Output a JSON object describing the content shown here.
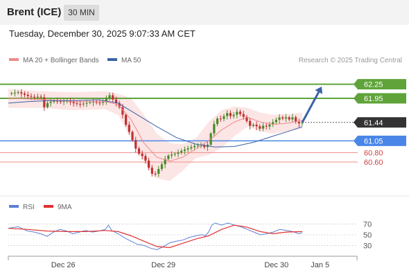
{
  "header": {
    "title": "Brent (ICE)",
    "timeframe": "30 MIN"
  },
  "timestamp": "Tuesday, December 30, 2025 9:07:33 AM CET",
  "colors": {
    "bollinger": "#f08a8a",
    "ma50": "#3a62a8",
    "resistance": "#5fa33a",
    "pivot": "#4a86e8",
    "support": "#f08a8a",
    "current": "#333333",
    "rsi": "#5b7fd6",
    "rsi_ma": "#e03030",
    "candle_up": "#4a8a2a",
    "candle_down": "#c03030",
    "arrow": "#3a62a8"
  },
  "chart_data": [
    {
      "type": "candlestick",
      "legend": [
        {
          "name": "MA 20 + Bollinger Bands",
          "color": "#f08a8a"
        },
        {
          "name": "MA 50",
          "color": "#3a62a8"
        }
      ],
      "credit": "Research © 2025 Trading Central",
      "ylim": [
        60.1,
        62.45
      ],
      "xlim": [
        0,
        100
      ],
      "x_ticks": [
        {
          "label": "Dec 26",
          "x": 17
        },
        {
          "label": "Dec 29",
          "x": 48
        },
        {
          "label": "Dec 30",
          "x": 83
        },
        {
          "label": "Jan 5",
          "x": 96.5
        }
      ],
      "levels": [
        {
          "value": 62.25,
          "label": "62.25",
          "kind": "resistance"
        },
        {
          "value": 61.95,
          "label": "61.95",
          "kind": "resistance"
        },
        {
          "value": 61.44,
          "label": "61.44",
          "kind": "current"
        },
        {
          "value": 61.05,
          "label": "61.05",
          "kind": "pivot"
        },
        {
          "value": 60.8,
          "label": "60.80",
          "kind": "support"
        },
        {
          "value": 60.6,
          "label": "60.60",
          "kind": "support"
        }
      ],
      "forecast_arrow": {
        "from": [
          91,
          61.44
        ],
        "to": [
          97,
          62.2
        ]
      },
      "price_path": [
        [
          0,
          62.05
        ],
        [
          3,
          62.08
        ],
        [
          6,
          62.0
        ],
        [
          8,
          61.97
        ],
        [
          10,
          62.0
        ],
        [
          11,
          61.75
        ],
        [
          12,
          61.85
        ],
        [
          14,
          61.9
        ],
        [
          16,
          61.88
        ],
        [
          18,
          61.9
        ],
        [
          20,
          61.85
        ],
        [
          22,
          61.82
        ],
        [
          24,
          61.85
        ],
        [
          26,
          61.88
        ],
        [
          28,
          61.85
        ],
        [
          30,
          61.9
        ],
        [
          31,
          62.05
        ],
        [
          32,
          61.95
        ],
        [
          33,
          61.88
        ],
        [
          34,
          61.8
        ],
        [
          35,
          61.7
        ],
        [
          36,
          61.45
        ],
        [
          37,
          61.3
        ],
        [
          38,
          61.15
        ],
        [
          39,
          60.95
        ],
        [
          40,
          60.8
        ],
        [
          41,
          60.75
        ],
        [
          42,
          60.7
        ],
        [
          43,
          60.55
        ],
        [
          44,
          60.4
        ],
        [
          45,
          60.3
        ],
        [
          46,
          60.4
        ],
        [
          47,
          60.5
        ],
        [
          48,
          60.6
        ],
        [
          49,
          60.72
        ],
        [
          50,
          60.75
        ],
        [
          52,
          60.78
        ],
        [
          54,
          60.85
        ],
        [
          56,
          60.9
        ],
        [
          58,
          60.95
        ],
        [
          60,
          60.95
        ],
        [
          61,
          60.9
        ],
        [
          62,
          61.0
        ],
        [
          63,
          61.3
        ],
        [
          64,
          61.45
        ],
        [
          65,
          61.55
        ],
        [
          66,
          61.5
        ],
        [
          67,
          61.6
        ],
        [
          68,
          61.65
        ],
        [
          69,
          61.55
        ],
        [
          70,
          61.62
        ],
        [
          71,
          61.68
        ],
        [
          72,
          61.6
        ],
        [
          73,
          61.55
        ],
        [
          74,
          61.45
        ],
        [
          75,
          61.35
        ],
        [
          76,
          61.4
        ],
        [
          77,
          61.35
        ],
        [
          78,
          61.3
        ],
        [
          79,
          61.38
        ],
        [
          80,
          61.35
        ],
        [
          81,
          61.4
        ],
        [
          82,
          61.45
        ],
        [
          83,
          61.5
        ],
        [
          84,
          61.55
        ],
        [
          85,
          61.52
        ],
        [
          86,
          61.55
        ],
        [
          87,
          61.5
        ],
        [
          88,
          61.55
        ],
        [
          89,
          61.45
        ],
        [
          90,
          61.42
        ],
        [
          91,
          61.44
        ]
      ],
      "ma20": [
        [
          0,
          61.95
        ],
        [
          10,
          61.93
        ],
        [
          20,
          61.88
        ],
        [
          30,
          61.88
        ],
        [
          34,
          61.82
        ],
        [
          38,
          61.5
        ],
        [
          42,
          61.0
        ],
        [
          46,
          60.7
        ],
        [
          50,
          60.62
        ],
        [
          54,
          60.7
        ],
        [
          58,
          60.88
        ],
        [
          62,
          61.05
        ],
        [
          66,
          61.28
        ],
        [
          70,
          61.45
        ],
        [
          74,
          61.55
        ],
        [
          78,
          61.45
        ],
        [
          82,
          61.4
        ],
        [
          86,
          61.42
        ],
        [
          91,
          61.48
        ]
      ],
      "bb_upper": [
        [
          0,
          62.15
        ],
        [
          10,
          62.1
        ],
        [
          20,
          62.08
        ],
        [
          30,
          62.1
        ],
        [
          34,
          62.05
        ],
        [
          38,
          61.95
        ],
        [
          42,
          61.6
        ],
        [
          46,
          61.2
        ],
        [
          50,
          61.0
        ],
        [
          54,
          60.98
        ],
        [
          58,
          61.1
        ],
        [
          62,
          61.45
        ],
        [
          66,
          61.7
        ],
        [
          70,
          61.78
        ],
        [
          74,
          61.75
        ],
        [
          78,
          61.65
        ],
        [
          82,
          61.6
        ],
        [
          86,
          61.62
        ],
        [
          91,
          61.65
        ]
      ],
      "bb_lower": [
        [
          0,
          61.75
        ],
        [
          10,
          61.75
        ],
        [
          20,
          61.7
        ],
        [
          30,
          61.72
        ],
        [
          34,
          61.6
        ],
        [
          38,
          61.1
        ],
        [
          42,
          60.6
        ],
        [
          46,
          60.25
        ],
        [
          50,
          60.2
        ],
        [
          54,
          60.42
        ],
        [
          58,
          60.68
        ],
        [
          62,
          60.75
        ],
        [
          66,
          60.9
        ],
        [
          70,
          61.15
        ],
        [
          74,
          61.35
        ],
        [
          78,
          61.25
        ],
        [
          82,
          61.2
        ],
        [
          86,
          61.25
        ],
        [
          91,
          61.3
        ]
      ],
      "ma50": [
        [
          0,
          61.85
        ],
        [
          6,
          61.88
        ],
        [
          12,
          61.9
        ],
        [
          20,
          61.9
        ],
        [
          28,
          61.92
        ],
        [
          34,
          61.85
        ],
        [
          40,
          61.6
        ],
        [
          46,
          61.35
        ],
        [
          52,
          61.12
        ],
        [
          58,
          60.98
        ],
        [
          64,
          60.92
        ],
        [
          70,
          60.93
        ],
        [
          76,
          61.02
        ],
        [
          82,
          61.15
        ],
        [
          88,
          61.28
        ],
        [
          91,
          61.35
        ]
      ]
    },
    {
      "type": "line",
      "legend": [
        {
          "name": "RSI",
          "color": "#5b7fd6"
        },
        {
          "name": "9MA",
          "color": "#e03030"
        }
      ],
      "ylim": [
        15,
        85
      ],
      "y_ticks": [
        70,
        50,
        30
      ],
      "rsi": [
        [
          0,
          62
        ],
        [
          3,
          65
        ],
        [
          6,
          57
        ],
        [
          8,
          55
        ],
        [
          10,
          52
        ],
        [
          12,
          47
        ],
        [
          14,
          55
        ],
        [
          16,
          60
        ],
        [
          18,
          57
        ],
        [
          20,
          52
        ],
        [
          22,
          55
        ],
        [
          24,
          58
        ],
        [
          26,
          55
        ],
        [
          28,
          57
        ],
        [
          30,
          60
        ],
        [
          31,
          68
        ],
        [
          32,
          58
        ],
        [
          34,
          52
        ],
        [
          36,
          44
        ],
        [
          38,
          38
        ],
        [
          40,
          32
        ],
        [
          42,
          30
        ],
        [
          44,
          25
        ],
        [
          46,
          22
        ],
        [
          48,
          28
        ],
        [
          50,
          35
        ],
        [
          52,
          38
        ],
        [
          54,
          40
        ],
        [
          56,
          45
        ],
        [
          58,
          48
        ],
        [
          60,
          50
        ],
        [
          61,
          48
        ],
        [
          62,
          55
        ],
        [
          63,
          68
        ],
        [
          64,
          72
        ],
        [
          66,
          68
        ],
        [
          68,
          72
        ],
        [
          70,
          68
        ],
        [
          72,
          65
        ],
        [
          74,
          60
        ],
        [
          76,
          55
        ],
        [
          78,
          50
        ],
        [
          80,
          52
        ],
        [
          82,
          55
        ],
        [
          84,
          60
        ],
        [
          86,
          58
        ],
        [
          88,
          56
        ],
        [
          90,
          52
        ],
        [
          91,
          54
        ]
      ],
      "rsi_ma": [
        [
          0,
          62
        ],
        [
          6,
          60
        ],
        [
          12,
          57
        ],
        [
          18,
          56
        ],
        [
          24,
          56
        ],
        [
          30,
          58
        ],
        [
          34,
          56
        ],
        [
          38,
          48
        ],
        [
          42,
          38
        ],
        [
          46,
          28
        ],
        [
          50,
          26
        ],
        [
          54,
          34
        ],
        [
          58,
          42
        ],
        [
          62,
          48
        ],
        [
          66,
          60
        ],
        [
          70,
          68
        ],
        [
          74,
          64
        ],
        [
          78,
          56
        ],
        [
          82,
          52
        ],
        [
          86,
          55
        ],
        [
          91,
          56
        ]
      ]
    }
  ]
}
